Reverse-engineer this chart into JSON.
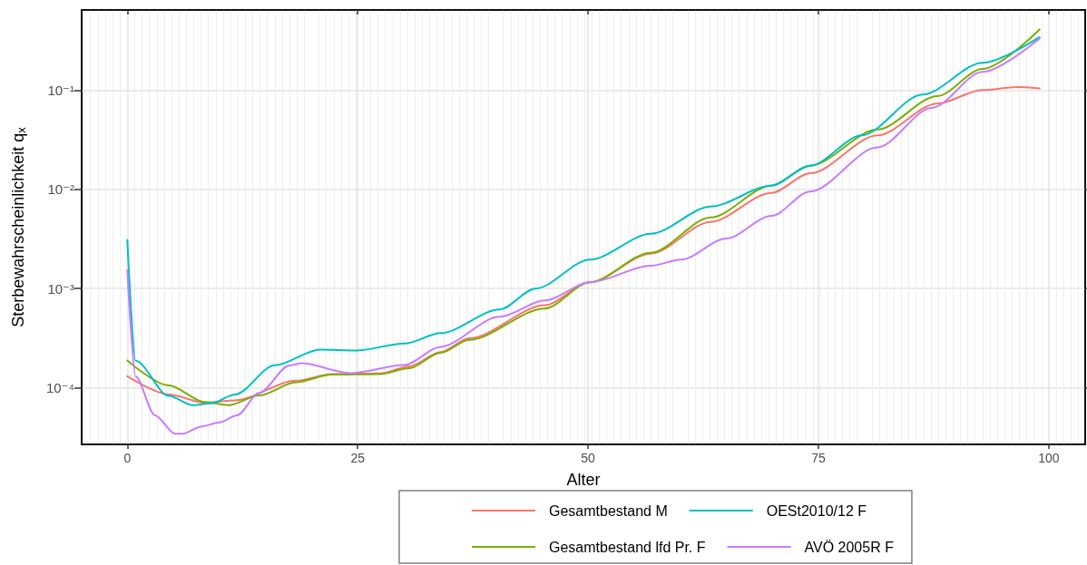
{
  "chart_data": {
    "type": "line",
    "xlabel": "Alter",
    "ylabel": "Sterbewahrscheinlichkeit q$_{x}$",
    "xlim": [
      -4.95,
      103.95
    ],
    "xticks": [
      0,
      25,
      50,
      75,
      100
    ],
    "ylim": [
      2.7e-05,
      0.64
    ],
    "yticks": [
      {
        "value": 0.0001,
        "label": "10⁻⁴"
      },
      {
        "value": 0.001,
        "label": "10⁻³"
      },
      {
        "value": 0.01,
        "label": "10⁻²"
      },
      {
        "value": 0.1,
        "label": "10⁻¹"
      }
    ],
    "log": "y",
    "grid": true,
    "legend": "bottom",
    "marker": "none",
    "line_style": "solid",
    "series": [
      {
        "name": "Gesamtbestand M",
        "color": "#f8766d",
        "x": [
          0,
          4.5,
          8.4,
          11.7,
          18.3,
          22.2,
          27.4,
          30.6,
          34,
          37.1,
          45.3,
          50.2,
          56.8,
          63.3,
          69.9,
          74.1,
          81.4,
          87.9,
          92.8,
          96.5,
          99
        ],
        "values": [
          0.000131,
          8.6e-05,
          7.1e-05,
          7.5e-05,
          0.000118,
          0.000138,
          0.00014,
          0.000165,
          0.00023,
          0.000316,
          0.00068,
          0.00116,
          0.00225,
          0.0047,
          0.0092,
          0.0145,
          0.0349,
          0.073,
          0.1,
          0.107,
          0.104
        ]
      },
      {
        "name": "Gesamtbestand lfd Pr. F",
        "color": "#7cae00",
        "x": [
          0,
          4.5,
          8.4,
          11,
          14.3,
          18.3,
          22.2,
          27.4,
          30.6,
          34,
          37.1,
          45.3,
          50.2,
          56.8,
          63.3,
          69.9,
          74.1,
          81.4,
          87.9,
          92.8,
          99
        ],
        "values": [
          0.000189,
          0.000106,
          7.2e-05,
          6.7e-05,
          8.4e-05,
          0.000114,
          0.000136,
          0.000138,
          0.000158,
          0.000226,
          0.000305,
          0.00063,
          0.00116,
          0.0023,
          0.0052,
          0.0109,
          0.0173,
          0.04,
          0.087,
          0.163,
          0.407
        ]
      },
      {
        "name": "OESt2010/12 F",
        "color": "#00bfc4",
        "x": [
          0,
          0.9,
          4.5,
          7.1,
          9.1,
          11.7,
          16,
          20.9,
          24.8,
          30.1,
          34,
          40.4,
          44.3,
          50.2,
          56.8,
          63.3,
          69.9,
          74.1,
          79.7,
          86.3,
          92.8,
          99
        ],
        "values": [
          0.0031,
          0.000188,
          8.3e-05,
          6.7e-05,
          7e-05,
          8.6e-05,
          0.000169,
          0.000243,
          0.000238,
          0.00028,
          0.000356,
          0.000615,
          0.001,
          0.00196,
          0.00356,
          0.0067,
          0.0109,
          0.0173,
          0.0349,
          0.09,
          0.188,
          0.341
        ]
      },
      {
        "name": "AVÖ 2005R F",
        "color": "#c77cff",
        "x": [
          0,
          0.9,
          3,
          5.2,
          6,
          8.1,
          10,
          11.9,
          14.3,
          17.6,
          18.9,
          24.2,
          30.1,
          33.9,
          40.4,
          45.3,
          50.2,
          56.8,
          60.1,
          65,
          69.9,
          74.1,
          81.4,
          87.3,
          92.8,
          99
        ],
        "values": [
          0.00153,
          0.000131,
          5.3e-05,
          3.46e-05,
          3.46e-05,
          4.1e-05,
          4.5e-05,
          5.3e-05,
          8.9e-05,
          0.000168,
          0.000177,
          0.000141,
          0.00017,
          0.000258,
          0.00052,
          0.00076,
          0.00116,
          0.0017,
          0.00196,
          0.0032,
          0.0054,
          0.0095,
          0.0264,
          0.066,
          0.152,
          0.33
        ]
      }
    ]
  }
}
